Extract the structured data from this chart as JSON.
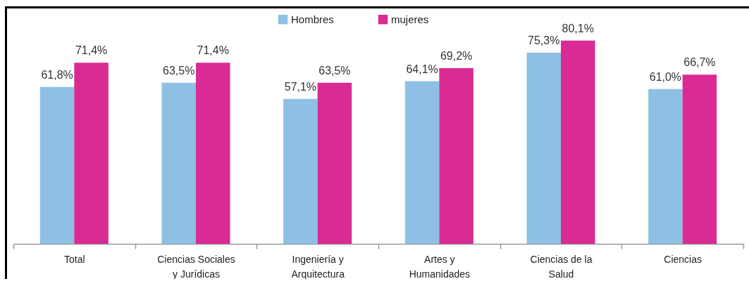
{
  "chart_data": {
    "type": "bar",
    "categories": [
      "Total",
      "Ciencias Sociales\ny Jurídicas",
      "Ingeniería y\nArquitectura",
      "Artes y\nHumanidades",
      "Ciencias de la\nSalud",
      "Ciencias"
    ],
    "series": [
      {
        "name": "Hombres",
        "color": "#8dc0e4",
        "values": [
          61.8,
          63.5,
          57.1,
          64.1,
          75.3,
          61.0
        ],
        "value_labels": [
          "61,8%",
          "63,5%",
          "57,1%",
          "64,1%",
          "75,3%",
          "61,0%"
        ]
      },
      {
        "name": "mujeres",
        "color": "#d92b93",
        "values": [
          71.4,
          71.4,
          63.5,
          69.2,
          80.1,
          66.7
        ],
        "value_labels": [
          "71,4%",
          "71,4%",
          "63,5%",
          "69,2%",
          "80,1%",
          "66,7%"
        ]
      }
    ],
    "legend": "top"
  }
}
